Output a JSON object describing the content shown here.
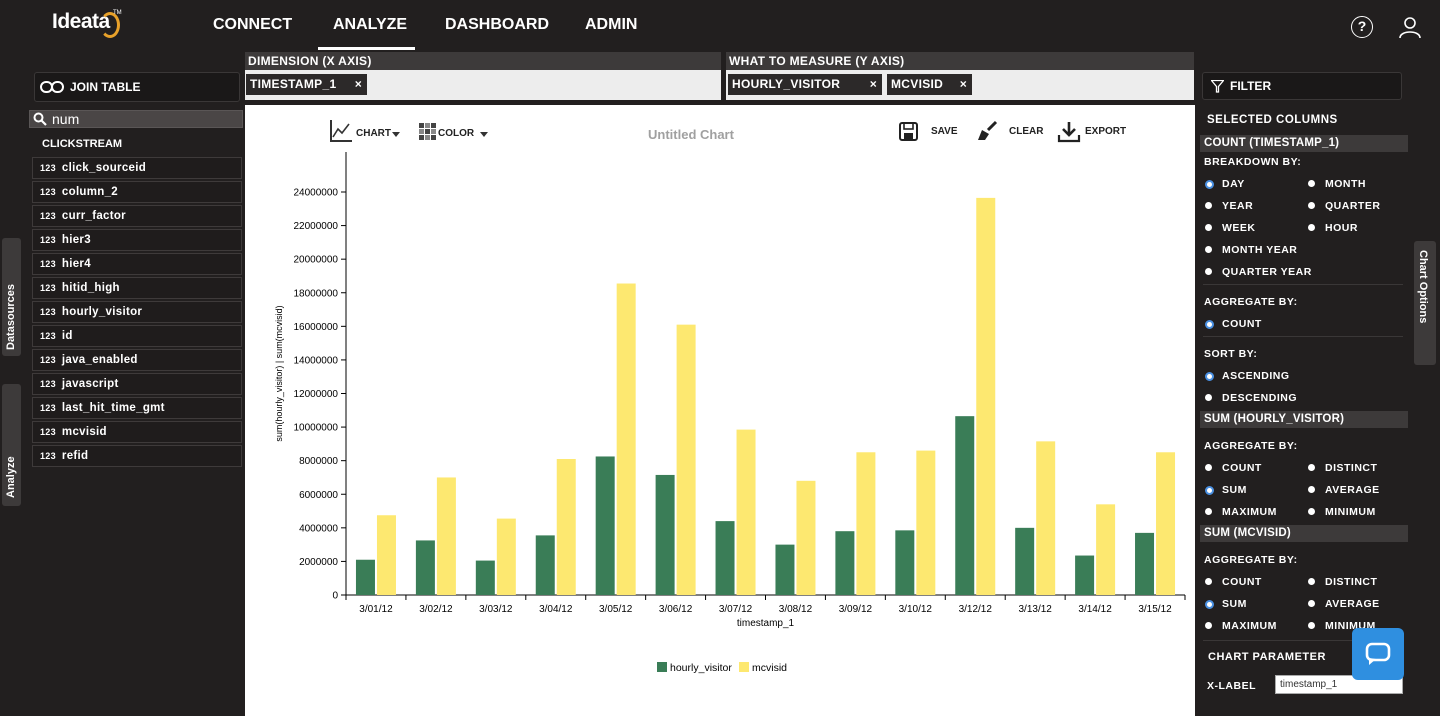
{
  "app": {
    "logo": "Ideata",
    "logo_tm": "TM"
  },
  "nav": [
    {
      "label": "CONNECT"
    },
    {
      "label": "ANALYZE"
    },
    {
      "label": "DASHBOARD"
    },
    {
      "label": "ADMIN"
    }
  ],
  "left": {
    "join_label": "JOIN TABLE",
    "search_value": "num",
    "datasource": "CLICKSTREAM",
    "fields": [
      "click_sourceid",
      "column_2",
      "curr_factor",
      "hier3",
      "hier4",
      "hitid_high",
      "hourly_visitor",
      "id",
      "java_enabled",
      "javascript",
      "last_hit_time_gmt",
      "mcvisid",
      "refid"
    ],
    "num_icon": "123",
    "tab_datasources": "Datasources",
    "tab_analyze": "Analyze"
  },
  "dimension": {
    "header": "DIMENSION (X AXIS)",
    "chips": [
      "TIMESTAMP_1"
    ]
  },
  "measure": {
    "header": "WHAT TO MEASURE (Y AXIS)",
    "chips": [
      "HOURLY_VISITOR",
      "MCVISID"
    ]
  },
  "chip_remove": "×",
  "toolbar": {
    "chart": "CHART",
    "color": "COLOR",
    "save": "SAVE",
    "clear": "CLEAR",
    "export": "EXPORT"
  },
  "chart_data": {
    "type": "bar",
    "title": "Untitled Chart",
    "xlabel": "timestamp_1",
    "ylabel": "sum(hourly_visitor) | sum(mcvisid)",
    "ylim": [
      0,
      24000000
    ],
    "yticks": [
      0,
      2000000,
      4000000,
      6000000,
      8000000,
      10000000,
      12000000,
      14000000,
      16000000,
      18000000,
      20000000,
      22000000,
      24000000
    ],
    "categories": [
      "3/01/12",
      "3/02/12",
      "3/03/12",
      "3/04/12",
      "3/05/12",
      "3/06/12",
      "3/07/12",
      "3/08/12",
      "3/09/12",
      "3/10/12",
      "3/12/12",
      "3/13/12",
      "3/14/12",
      "3/15/12"
    ],
    "series": [
      {
        "name": "hourly_visitor",
        "color": "#3a7d57",
        "values": [
          2100000,
          3250000,
          2050000,
          3550000,
          8250000,
          7150000,
          4400000,
          3000000,
          3800000,
          3850000,
          10650000,
          4000000,
          2350000,
          3700000
        ]
      },
      {
        "name": "mcvisid",
        "color": "#fde870",
        "values": [
          4750000,
          7000000,
          4550000,
          8100000,
          18550000,
          16100000,
          9850000,
          6800000,
          8500000,
          8600000,
          23650000,
          9150000,
          5400000,
          8500000
        ]
      }
    ],
    "legend_position": "bottom-center",
    "grid": false
  },
  "right": {
    "filter_label": "FILTER",
    "selected_columns": "SELECTED COLUMNS",
    "sec1": {
      "head": "COUNT (TIMESTAMP_1)",
      "breakdown_label": "BREAKDOWN BY:",
      "breakdown": [
        "DAY",
        "MONTH",
        "YEAR",
        "QUARTER",
        "WEEK",
        "HOUR",
        "MONTH YEAR",
        "QUARTER YEAR"
      ],
      "aggregate_label": "AGGREGATE BY:",
      "aggregate": [
        "COUNT"
      ],
      "sort_label": "SORT BY:",
      "sort": [
        "ASCENDING",
        "DESCENDING"
      ]
    },
    "sec2": {
      "head": "SUM (HOURLY_VISITOR)",
      "aggregate_label": "AGGREGATE BY:",
      "aggregate": [
        "COUNT",
        "DISTINCT",
        "SUM",
        "AVERAGE",
        "MAXIMUM",
        "MINIMUM"
      ]
    },
    "sec3": {
      "head": "SUM (MCVISID)",
      "aggregate_label": "AGGREGATE BY:",
      "aggregate": [
        "COUNT",
        "DISTINCT",
        "SUM",
        "AVERAGE",
        "MAXIMUM",
        "MINIMUM"
      ]
    },
    "chart_parameter": "CHART PARAMETER",
    "xlabel_label": "X-LABEL",
    "xlabel_value": "timestamp_1",
    "chart_options_tab": "Chart Options"
  }
}
